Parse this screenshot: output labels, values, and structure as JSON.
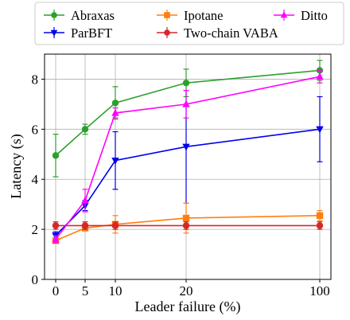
{
  "chart_data": {
    "type": "line",
    "title": "",
    "xlabel": "Leader failure (%)",
    "ylabel": "Latency (s)",
    "x_ticks": [
      "0",
      "5",
      "10",
      "20",
      "100"
    ],
    "y_ticks": [
      "0",
      "2",
      "4",
      "6",
      "8"
    ],
    "ylim": [
      0,
      9
    ],
    "grid": true,
    "legend_position": "top",
    "series": [
      {
        "name": "Abraxas",
        "color": "#2ca02c",
        "marker": "circle",
        "x": [
          "0",
          "5",
          "10",
          "20",
          "100"
        ],
        "values": [
          4.95,
          6.0,
          7.05,
          7.85,
          8.35
        ],
        "error": [
          0.85,
          0.2,
          0.65,
          0.55,
          0.4
        ]
      },
      {
        "name": "ParBFT",
        "color": "#0000ee",
        "marker": "triangle-down",
        "x": [
          "0",
          "5",
          "10",
          "20",
          "100"
        ],
        "values": [
          1.75,
          2.95,
          4.75,
          5.3,
          6.0
        ],
        "error": [
          0.15,
          0.2,
          1.15,
          2.25,
          1.3
        ]
      },
      {
        "name": "Ipotane",
        "color": "#ff7f0e",
        "marker": "square",
        "x": [
          "0",
          "5",
          "10",
          "20",
          "100"
        ],
        "values": [
          1.55,
          2.05,
          2.2,
          2.45,
          2.55
        ],
        "error": [
          0.1,
          0.1,
          0.35,
          0.6,
          0.2
        ]
      },
      {
        "name": "Two-chain VABA",
        "color": "#d62728",
        "marker": "circle",
        "x": [
          "0",
          "5",
          "10",
          "20",
          "100"
        ],
        "values": [
          2.15,
          2.15,
          2.15,
          2.15,
          2.15
        ],
        "error": [
          0.15,
          0.15,
          0.15,
          0.15,
          0.15
        ]
      },
      {
        "name": "Ditto",
        "color": "#ff00ff",
        "marker": "triangle-up",
        "x": [
          "0",
          "5",
          "10",
          "20",
          "100"
        ],
        "values": [
          1.6,
          3.15,
          6.65,
          7.0,
          8.1
        ],
        "error": [
          0.15,
          0.45,
          0.2,
          0.55,
          0.25
        ]
      }
    ]
  }
}
